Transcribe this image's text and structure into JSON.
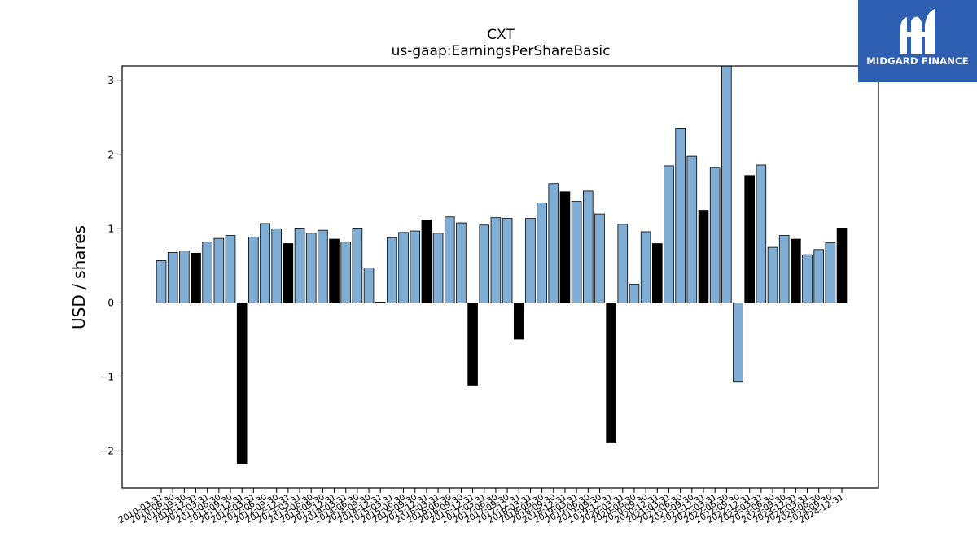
{
  "brand": {
    "name": "MIDGARD FINANCE",
    "logo_icon": "midgard-m-logo-icon",
    "color": "#2f5fb0"
  },
  "chart_data": {
    "type": "bar",
    "title": "CXT",
    "subtitle": "us-gaap:EarningsPerShareBasic",
    "ylabel": "USD / shares",
    "xlabel": "",
    "ylim": [
      -2.5,
      3.2
    ],
    "yticks": [
      -2,
      -1,
      0,
      1,
      2,
      3
    ],
    "ytick_labels": [
      "−2",
      "−1",
      "0",
      "1",
      "2",
      "3"
    ],
    "grid": false,
    "colors": {
      "quarterly": "#7fadd3",
      "annual": "#000000",
      "edge": "#000000"
    },
    "categories": [
      "2010-03-31",
      "2010-06-30",
      "2010-09-30",
      "2010-12-31",
      "2011-03-31",
      "2011-06-30",
      "2011-09-30",
      "2011-12-31",
      "2012-03-31",
      "2012-06-30",
      "2012-09-30",
      "2012-12-31",
      "2013-03-31",
      "2013-06-30",
      "2013-09-30",
      "2013-12-31",
      "2014-03-31",
      "2014-06-30",
      "2014-09-30",
      "2014-12-31",
      "2015-03-31",
      "2015-06-30",
      "2015-09-30",
      "2015-12-31",
      "2016-03-31",
      "2016-06-30",
      "2016-09-30",
      "2016-12-31",
      "2017-03-31",
      "2017-06-30",
      "2017-09-30",
      "2017-12-31",
      "2018-03-31",
      "2018-06-30",
      "2018-09-30",
      "2018-12-31",
      "2019-03-31",
      "2019-06-30",
      "2019-09-30",
      "2019-12-31",
      "2020-03-31",
      "2020-06-30",
      "2020-09-30",
      "2020-12-31",
      "2021-03-31",
      "2021-06-30",
      "2021-09-30",
      "2021-12-31",
      "2022-03-31",
      "2022-06-30",
      "2022-09-30",
      "2022-12-31",
      "2023-03-31",
      "2023-06-30",
      "2023-09-30",
      "2023-12-31",
      "2024-03-31",
      "2024-06-30",
      "2024-09-30",
      "2024-12-31"
    ],
    "values": [
      0.57,
      0.68,
      0.7,
      0.67,
      0.82,
      0.87,
      0.91,
      -2.17,
      0.89,
      1.07,
      1.0,
      0.8,
      1.01,
      0.94,
      0.98,
      0.86,
      0.82,
      1.01,
      0.47,
      0.01,
      0.88,
      0.95,
      0.97,
      1.12,
      0.94,
      1.16,
      1.08,
      -1.11,
      1.05,
      1.15,
      1.14,
      -0.49,
      1.14,
      1.35,
      1.61,
      1.5,
      1.37,
      1.51,
      1.2,
      -1.89,
      1.06,
      0.25,
      0.96,
      0.8,
      1.85,
      2.36,
      1.98,
      1.25,
      1.83,
      3.32,
      -1.07,
      1.72,
      1.86,
      0.75,
      0.91,
      0.86,
      0.65,
      0.72,
      0.81,
      1.01
    ],
    "period_type": [
      "Q",
      "Q",
      "Q",
      "FY",
      "Q",
      "Q",
      "Q",
      "FY",
      "Q",
      "Q",
      "Q",
      "FY",
      "Q",
      "Q",
      "Q",
      "FY",
      "Q",
      "Q",
      "Q",
      "FY",
      "Q",
      "Q",
      "Q",
      "FY",
      "Q",
      "Q",
      "Q",
      "FY",
      "Q",
      "Q",
      "Q",
      "FY",
      "Q",
      "Q",
      "Q",
      "FY",
      "Q",
      "Q",
      "Q",
      "FY",
      "Q",
      "Q",
      "Q",
      "FY",
      "Q",
      "Q",
      "Q",
      "FY",
      "Q",
      "Q",
      "Q",
      "FY",
      "Q",
      "Q",
      "Q",
      "FY",
      "Q",
      "Q",
      "Q",
      "FY"
    ]
  }
}
